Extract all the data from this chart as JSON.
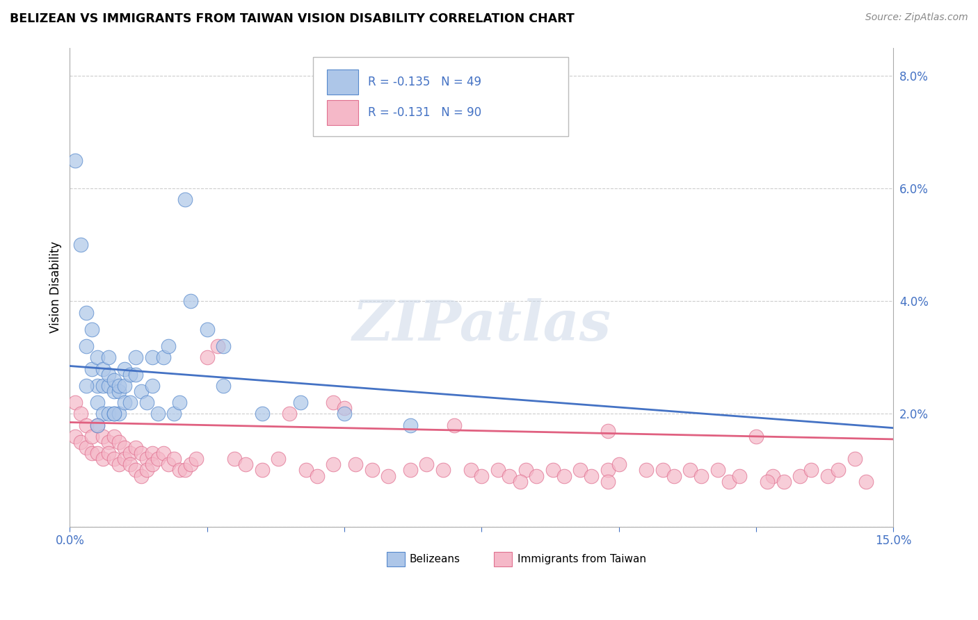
{
  "title": "BELIZEAN VS IMMIGRANTS FROM TAIWAN VISION DISABILITY CORRELATION CHART",
  "source": "Source: ZipAtlas.com",
  "ylabel": "Vision Disability",
  "xlim": [
    0.0,
    0.15
  ],
  "ylim": [
    -0.005,
    0.085
  ],
  "plot_ylim": [
    0.0,
    0.085
  ],
  "xticks": [
    0.0,
    0.025,
    0.05,
    0.075,
    0.1,
    0.125,
    0.15
  ],
  "yticks": [
    0.0,
    0.02,
    0.04,
    0.06,
    0.08
  ],
  "yticklabels_right": [
    "",
    "2.0%",
    "4.0%",
    "6.0%",
    "8.0%"
  ],
  "belizean_color": "#adc6e8",
  "taiwan_color": "#f5b8c8",
  "belizean_edge_color": "#5588cc",
  "taiwan_edge_color": "#e07090",
  "belizean_line_color": "#4472c4",
  "taiwan_line_color": "#e06080",
  "watermark": "ZIPatlas",
  "trend_b_start": 0.0285,
  "trend_b_end": 0.0175,
  "trend_t_start": 0.0185,
  "trend_t_end": 0.0155,
  "belizean_scatter_x": [
    0.001,
    0.002,
    0.003,
    0.003,
    0.004,
    0.004,
    0.005,
    0.005,
    0.005,
    0.006,
    0.006,
    0.006,
    0.007,
    0.007,
    0.007,
    0.007,
    0.008,
    0.008,
    0.008,
    0.009,
    0.009,
    0.009,
    0.01,
    0.01,
    0.01,
    0.011,
    0.011,
    0.012,
    0.012,
    0.013,
    0.014,
    0.015,
    0.015,
    0.016,
    0.017,
    0.018,
    0.019,
    0.02,
    0.021,
    0.022,
    0.025,
    0.028,
    0.035,
    0.042,
    0.05,
    0.028,
    0.008,
    0.003,
    0.062,
    0.005
  ],
  "belizean_scatter_y": [
    0.065,
    0.05,
    0.038,
    0.032,
    0.035,
    0.028,
    0.03,
    0.022,
    0.025,
    0.028,
    0.025,
    0.02,
    0.03,
    0.025,
    0.02,
    0.027,
    0.024,
    0.02,
    0.026,
    0.024,
    0.02,
    0.025,
    0.022,
    0.028,
    0.025,
    0.022,
    0.027,
    0.027,
    0.03,
    0.024,
    0.022,
    0.025,
    0.03,
    0.02,
    0.03,
    0.032,
    0.02,
    0.022,
    0.058,
    0.04,
    0.035,
    0.025,
    0.02,
    0.022,
    0.02,
    0.032,
    0.02,
    0.025,
    0.018,
    0.018
  ],
  "taiwan_scatter_x": [
    0.001,
    0.001,
    0.002,
    0.002,
    0.003,
    0.003,
    0.004,
    0.004,
    0.005,
    0.005,
    0.006,
    0.006,
    0.007,
    0.007,
    0.008,
    0.008,
    0.009,
    0.009,
    0.01,
    0.01,
    0.011,
    0.011,
    0.012,
    0.012,
    0.013,
    0.013,
    0.014,
    0.014,
    0.015,
    0.015,
    0.016,
    0.017,
    0.018,
    0.019,
    0.02,
    0.021,
    0.022,
    0.023,
    0.025,
    0.027,
    0.03,
    0.032,
    0.035,
    0.038,
    0.04,
    0.043,
    0.045,
    0.048,
    0.052,
    0.055,
    0.058,
    0.062,
    0.065,
    0.068,
    0.07,
    0.073,
    0.075,
    0.078,
    0.08,
    0.083,
    0.085,
    0.088,
    0.09,
    0.093,
    0.095,
    0.098,
    0.1,
    0.105,
    0.108,
    0.11,
    0.113,
    0.115,
    0.118,
    0.12,
    0.122,
    0.125,
    0.128,
    0.13,
    0.133,
    0.135,
    0.138,
    0.14,
    0.143,
    0.145,
    0.048,
    0.05,
    0.098,
    0.098,
    0.127,
    0.082
  ],
  "taiwan_scatter_y": [
    0.022,
    0.016,
    0.02,
    0.015,
    0.018,
    0.014,
    0.016,
    0.013,
    0.018,
    0.013,
    0.016,
    0.012,
    0.015,
    0.013,
    0.016,
    0.012,
    0.015,
    0.011,
    0.014,
    0.012,
    0.013,
    0.011,
    0.014,
    0.01,
    0.013,
    0.009,
    0.012,
    0.01,
    0.013,
    0.011,
    0.012,
    0.013,
    0.011,
    0.012,
    0.01,
    0.01,
    0.011,
    0.012,
    0.03,
    0.032,
    0.012,
    0.011,
    0.01,
    0.012,
    0.02,
    0.01,
    0.009,
    0.011,
    0.011,
    0.01,
    0.009,
    0.01,
    0.011,
    0.01,
    0.018,
    0.01,
    0.009,
    0.01,
    0.009,
    0.01,
    0.009,
    0.01,
    0.009,
    0.01,
    0.009,
    0.01,
    0.011,
    0.01,
    0.01,
    0.009,
    0.01,
    0.009,
    0.01,
    0.008,
    0.009,
    0.016,
    0.009,
    0.008,
    0.009,
    0.01,
    0.009,
    0.01,
    0.012,
    0.008,
    0.022,
    0.021,
    0.017,
    0.008,
    0.008,
    0.008
  ]
}
